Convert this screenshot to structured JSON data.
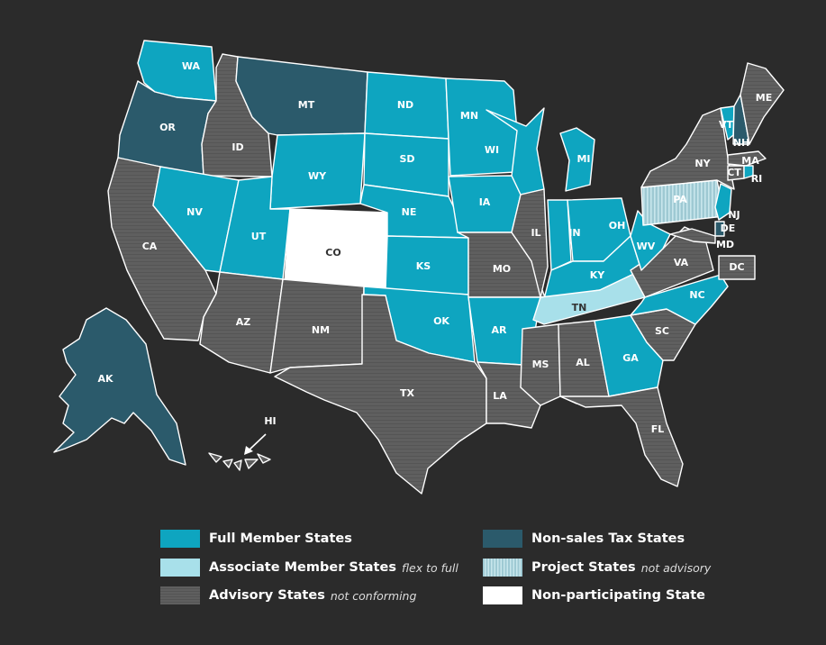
{
  "colors": {
    "background": "#2b2b2b",
    "full_member": "#0ea5c0",
    "associate_member": "#a8e0ea",
    "advisory": "#5f5f5f",
    "non_sales_tax": "#2b5a6b",
    "project": "#9ec9d3",
    "non_participating": "#ffffff",
    "border": "#ffffff"
  },
  "legend": [
    {
      "key": "full_member",
      "label": "Full Member States",
      "note": ""
    },
    {
      "key": "associate_member",
      "label": "Associate Member States",
      "note": "flex to full"
    },
    {
      "key": "advisory",
      "label": "Advisory States",
      "note": "not conforming"
    },
    {
      "key": "non_sales_tax",
      "label": "Non-sales Tax States",
      "note": ""
    },
    {
      "key": "project",
      "label": "Project States",
      "note": "not advisory"
    },
    {
      "key": "non_participating",
      "label": "Non-participating State",
      "note": ""
    }
  ],
  "states": [
    {
      "abbr": "WA",
      "status": "full_member"
    },
    {
      "abbr": "OR",
      "status": "non_sales_tax"
    },
    {
      "abbr": "CA",
      "status": "advisory"
    },
    {
      "abbr": "ID",
      "status": "advisory"
    },
    {
      "abbr": "NV",
      "status": "full_member"
    },
    {
      "abbr": "MT",
      "status": "non_sales_tax"
    },
    {
      "abbr": "WY",
      "status": "full_member"
    },
    {
      "abbr": "UT",
      "status": "full_member"
    },
    {
      "abbr": "CO",
      "status": "non_participating"
    },
    {
      "abbr": "AZ",
      "status": "advisory"
    },
    {
      "abbr": "NM",
      "status": "advisory"
    },
    {
      "abbr": "ND",
      "status": "full_member"
    },
    {
      "abbr": "SD",
      "status": "full_member"
    },
    {
      "abbr": "NE",
      "status": "full_member"
    },
    {
      "abbr": "KS",
      "status": "full_member"
    },
    {
      "abbr": "OK",
      "status": "full_member"
    },
    {
      "abbr": "TX",
      "status": "advisory"
    },
    {
      "abbr": "MN",
      "status": "full_member"
    },
    {
      "abbr": "IA",
      "status": "full_member"
    },
    {
      "abbr": "MO",
      "status": "advisory"
    },
    {
      "abbr": "AR",
      "status": "full_member"
    },
    {
      "abbr": "LA",
      "status": "advisory"
    },
    {
      "abbr": "WI",
      "status": "full_member"
    },
    {
      "abbr": "IL",
      "status": "advisory"
    },
    {
      "abbr": "MI",
      "status": "full_member"
    },
    {
      "abbr": "IN",
      "status": "full_member"
    },
    {
      "abbr": "OH",
      "status": "full_member"
    },
    {
      "abbr": "KY",
      "status": "full_member"
    },
    {
      "abbr": "TN",
      "status": "associate_member"
    },
    {
      "abbr": "MS",
      "status": "advisory"
    },
    {
      "abbr": "AL",
      "status": "advisory"
    },
    {
      "abbr": "GA",
      "status": "full_member"
    },
    {
      "abbr": "FL",
      "status": "advisory"
    },
    {
      "abbr": "SC",
      "status": "advisory"
    },
    {
      "abbr": "NC",
      "status": "full_member"
    },
    {
      "abbr": "VA",
      "status": "advisory"
    },
    {
      "abbr": "WV",
      "status": "full_member"
    },
    {
      "abbr": "PA",
      "status": "project"
    },
    {
      "abbr": "NY",
      "status": "advisory"
    },
    {
      "abbr": "VT",
      "status": "full_member"
    },
    {
      "abbr": "NH",
      "status": "non_sales_tax"
    },
    {
      "abbr": "ME",
      "status": "advisory"
    },
    {
      "abbr": "MA",
      "status": "advisory"
    },
    {
      "abbr": "CT",
      "status": "advisory"
    },
    {
      "abbr": "RI",
      "status": "full_member"
    },
    {
      "abbr": "NJ",
      "status": "full_member"
    },
    {
      "abbr": "DE",
      "status": "non_sales_tax"
    },
    {
      "abbr": "MD",
      "status": "advisory"
    },
    {
      "abbr": "DC",
      "status": "advisory"
    },
    {
      "abbr": "AK",
      "status": "non_sales_tax"
    },
    {
      "abbr": "HI",
      "status": "advisory"
    }
  ]
}
